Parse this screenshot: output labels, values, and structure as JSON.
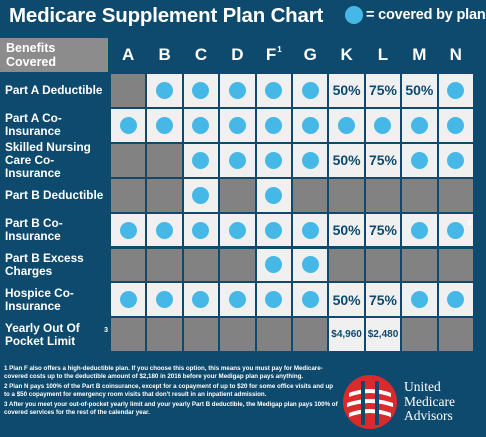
{
  "header": {
    "title": "Medicare Supplement Plan Chart",
    "legend_text": "= covered by plan",
    "legend_color": "#45b8e8"
  },
  "table": {
    "corner_label": "Benefits Covered",
    "plans": [
      {
        "label": "A",
        "sup": ""
      },
      {
        "label": "B",
        "sup": ""
      },
      {
        "label": "C",
        "sup": ""
      },
      {
        "label": "D",
        "sup": ""
      },
      {
        "label": "F",
        "sup": "1"
      },
      {
        "label": "G",
        "sup": ""
      },
      {
        "label": "K",
        "sup": ""
      },
      {
        "label": "L",
        "sup": ""
      },
      {
        "label": "M",
        "sup": ""
      },
      {
        "label": "N",
        "sup": ""
      }
    ],
    "rows": [
      {
        "label": "Part A Deductible",
        "sup": "",
        "cells": [
          "-",
          "dot",
          "dot",
          "dot",
          "dot",
          "dot",
          "50%",
          "75%",
          "50%",
          "dot"
        ]
      },
      {
        "label": "Part A Co-Insurance",
        "sup": "",
        "cells": [
          "dot",
          "dot",
          "dot",
          "dot",
          "dot",
          "dot",
          "dot",
          "dot",
          "dot",
          "dot"
        ]
      },
      {
        "label": "Skilled Nursing Care Co-Insurance",
        "sup": "",
        "cells": [
          "-",
          "-",
          "dot",
          "dot",
          "dot",
          "dot",
          "50%",
          "75%",
          "dot",
          "dot"
        ]
      },
      {
        "label": "Part B Deductible",
        "sup": "",
        "cells": [
          "-",
          "-",
          "dot",
          "-",
          "dot",
          "-",
          "-",
          "-",
          "-",
          "-"
        ]
      },
      {
        "label": "Part B Co-Insurance",
        "sup": "",
        "cells": [
          "dot",
          "dot",
          "dot",
          "dot",
          "dot",
          "dot",
          "50%",
          "75%",
          "dot",
          "dot2"
        ]
      },
      {
        "label": "Part B Excess Charges",
        "sup": "",
        "cells": [
          "-",
          "-",
          "-",
          "-",
          "dot",
          "dot",
          "-",
          "-",
          "-",
          "-"
        ]
      },
      {
        "label": "Hospice Co-Insurance",
        "sup": "",
        "cells": [
          "dot",
          "dot",
          "dot",
          "dot",
          "dot",
          "dot",
          "50%",
          "75%",
          "dot",
          "dot"
        ]
      },
      {
        "label": "Yearly Out Of Pocket Limit",
        "sup": "3",
        "cells": [
          "-",
          "-",
          "-",
          "-",
          "-",
          "-",
          "$4,960",
          "$2,480",
          "-",
          "-"
        ]
      }
    ],
    "dot_superscript": "2"
  },
  "footnotes": [
    "1 Plan F also offers a high-deductible plan. If you choose this option, this means you must pay for Medicare-covered costs up to the deductible amount of $2,180 in 2016 before your Medigap plan pays anything.",
    "2 Plan N pays 100% of the Part B coinsurance, except for a copayment of up to $20 for some office visits and up to a $50 copayment for emergency room visits that don't result in an inpatient admission.",
    "3 After you meet your out-of-pocket yearly limit and your yearly Part B deductible, the Medigap plan pays 100% of covered services for the rest of the calendar year."
  ],
  "brand": {
    "line1": "United",
    "line2": "Medicare",
    "line3": "Advisors",
    "logo_colors": {
      "red": "#d92b2b",
      "white": "#ffffff"
    }
  }
}
